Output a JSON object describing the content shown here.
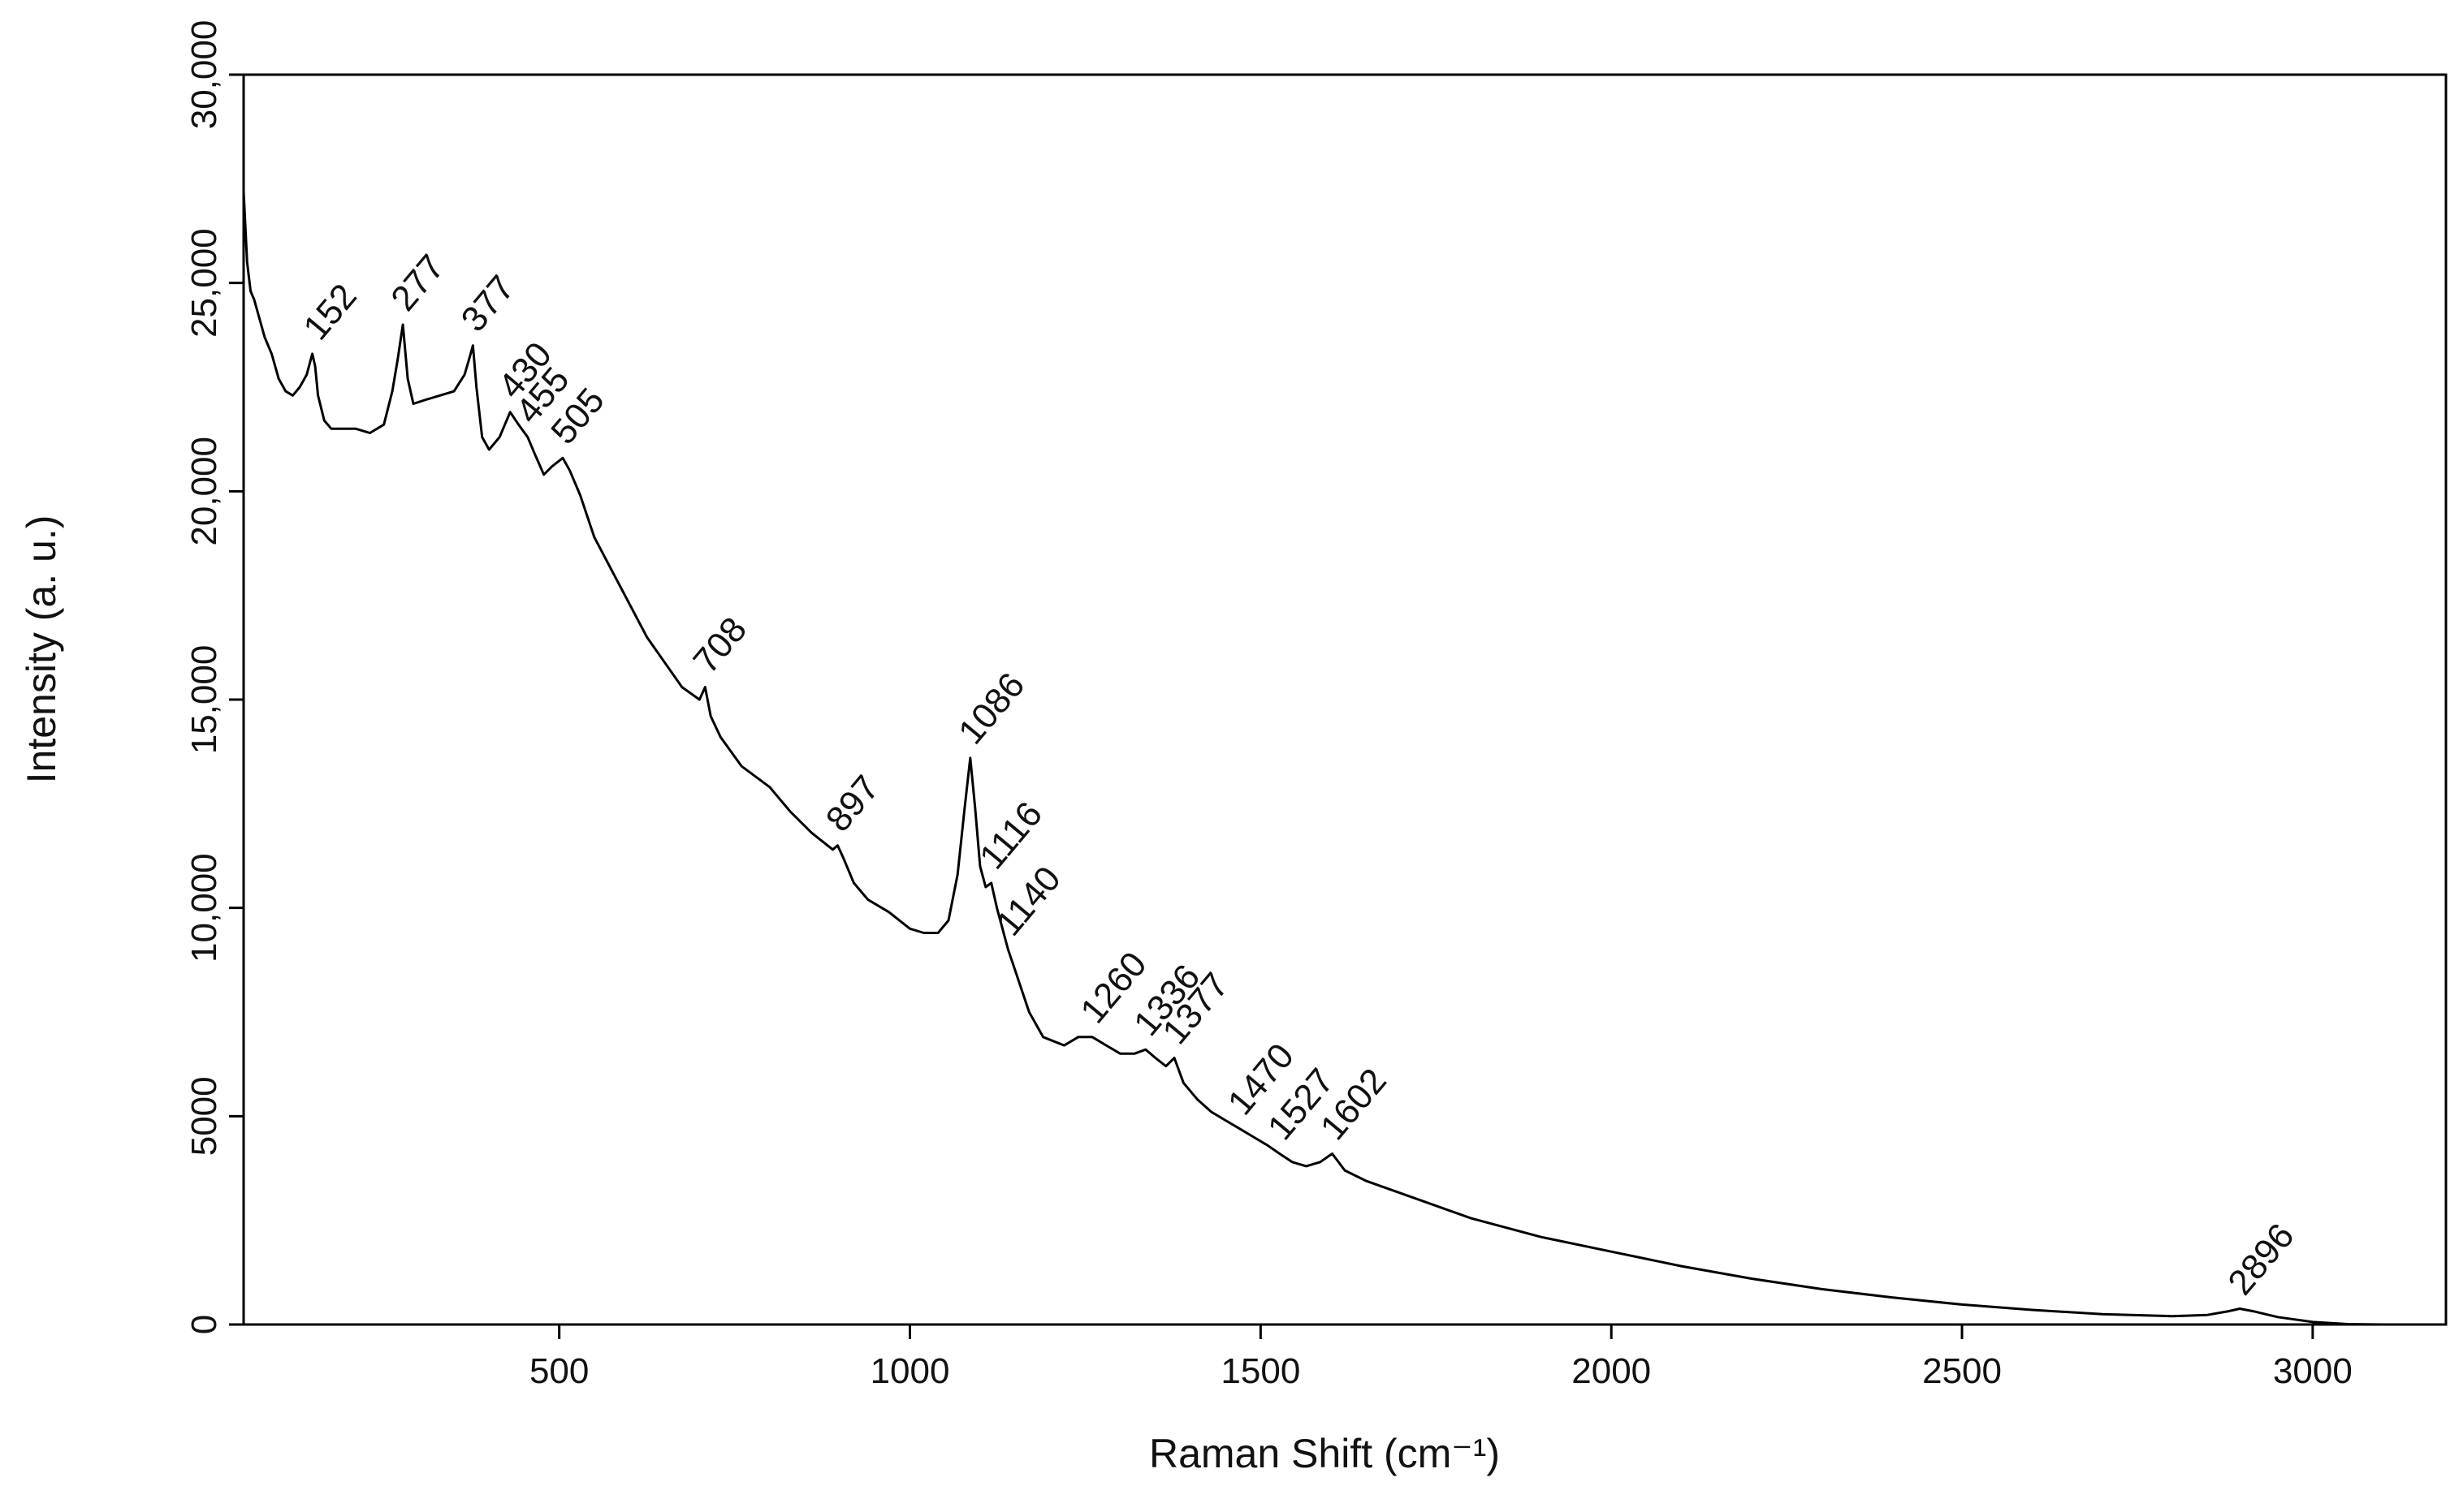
{
  "chart_data": {
    "type": "line",
    "title": "",
    "xlabel": "Raman Shift (cm⁻¹)",
    "ylabel": "Intensity (a. u.)",
    "xlim": [
      50,
      3190
    ],
    "ylim": [
      0,
      30000
    ],
    "xticks": [
      {
        "value": 500,
        "label": "500"
      },
      {
        "value": 1000,
        "label": "1000"
      },
      {
        "value": 1500,
        "label": "1500"
      },
      {
        "value": 2000,
        "label": "2000"
      },
      {
        "value": 2500,
        "label": "2500"
      },
      {
        "value": 3000,
        "label": "3000"
      }
    ],
    "yticks": [
      {
        "value": 0,
        "label": "0"
      },
      {
        "value": 5000,
        "label": "5000"
      },
      {
        "value": 10000,
        "label": "10,000"
      },
      {
        "value": 15000,
        "label": "15,000"
      },
      {
        "value": 20000,
        "label": "20,000"
      },
      {
        "value": 25000,
        "label": "25,000"
      },
      {
        "value": 30000,
        "label": "30,000"
      }
    ],
    "grid": false,
    "legend": "none",
    "line_color": "#000000",
    "series": [
      {
        "x": [
          50,
          55,
          60,
          65,
          70,
          80,
          90,
          100,
          110,
          120,
          130,
          140,
          148,
          152,
          156,
          165,
          175,
          190,
          210,
          230,
          250,
          262,
          270,
          277,
          284,
          292,
          310,
          330,
          350,
          365,
          372,
          377,
          382,
          390,
          400,
          415,
          430,
          442,
          455,
          465,
          478,
          490,
          505,
          515,
          530,
          550,
          575,
          600,
          625,
          650,
          675,
          700,
          708,
          716,
          730,
          760,
          800,
          830,
          860,
          890,
          897,
          905,
          920,
          940,
          970,
          1000,
          1020,
          1040,
          1055,
          1068,
          1078,
          1086,
          1093,
          1100,
          1108,
          1116,
          1124,
          1132,
          1140,
          1150,
          1170,
          1190,
          1220,
          1240,
          1260,
          1280,
          1300,
          1320,
          1336,
          1350,
          1365,
          1377,
          1390,
          1410,
          1430,
          1450,
          1470,
          1490,
          1510,
          1527,
          1545,
          1565,
          1585,
          1602,
          1620,
          1650,
          1700,
          1750,
          1800,
          1900,
          2000,
          2100,
          2200,
          2300,
          2400,
          2500,
          2600,
          2700,
          2800,
          2850,
          2880,
          2896,
          2915,
          2950,
          3000,
          3050,
          3100,
          3150,
          3190
        ],
        "y": [
          27200,
          25500,
          24800,
          24600,
          24300,
          23700,
          23300,
          22700,
          22400,
          22300,
          22500,
          22800,
          23300,
          23000,
          22300,
          21700,
          21500,
          21500,
          21500,
          21400,
          21600,
          22400,
          23200,
          24000,
          22700,
          22100,
          22200,
          22300,
          22400,
          22800,
          23200,
          23500,
          22500,
          21300,
          21000,
          21300,
          21900,
          21600,
          21300,
          20900,
          20400,
          20600,
          20800,
          20500,
          19900,
          18900,
          18100,
          17300,
          16500,
          15900,
          15300,
          15000,
          15300,
          14600,
          14100,
          13400,
          12900,
          12300,
          11800,
          11400,
          11500,
          11200,
          10600,
          10200,
          9900,
          9500,
          9400,
          9400,
          9700,
          10800,
          12400,
          13600,
          12400,
          11000,
          10500,
          10600,
          10000,
          9500,
          9000,
          8500,
          7500,
          6900,
          6700,
          6900,
          6900,
          6700,
          6500,
          6500,
          6600,
          6400,
          6200,
          6400,
          5800,
          5400,
          5100,
          4900,
          4700,
          4500,
          4300,
          4100,
          3900,
          3800,
          3900,
          4100,
          3700,
          3450,
          3150,
          2850,
          2550,
          2100,
          1750,
          1400,
          1100,
          850,
          650,
          480,
          350,
          250,
          200,
          230,
          320,
          380,
          320,
          180,
          60,
          10,
          0,
          0,
          0
        ]
      }
    ],
    "annotations": [
      {
        "label": "152",
        "x": 152,
        "y": 23300
      },
      {
        "label": "277",
        "x": 277,
        "y": 24000
      },
      {
        "label": "377",
        "x": 377,
        "y": 23500
      },
      {
        "label": "430",
        "x": 430,
        "y": 21900
      },
      {
        "label": "455",
        "x": 455,
        "y": 21300
      },
      {
        "label": "505",
        "x": 505,
        "y": 20800
      },
      {
        "label": "708",
        "x": 708,
        "y": 15300
      },
      {
        "label": "897",
        "x": 897,
        "y": 11500
      },
      {
        "label": "1086",
        "x": 1086,
        "y": 13600
      },
      {
        "label": "1116",
        "x": 1116,
        "y": 10600
      },
      {
        "label": "1140",
        "x": 1140,
        "y": 9000
      },
      {
        "label": "1260",
        "x": 1260,
        "y": 6900
      },
      {
        "label": "1336",
        "x": 1336,
        "y": 6600
      },
      {
        "label": "1377",
        "x": 1377,
        "y": 6400
      },
      {
        "label": "1470",
        "x": 1470,
        "y": 4700
      },
      {
        "label": "1527",
        "x": 1527,
        "y": 4100
      },
      {
        "label": "1602",
        "x": 1602,
        "y": 4100
      },
      {
        "label": "2896",
        "x": 2896,
        "y": 380
      }
    ]
  }
}
